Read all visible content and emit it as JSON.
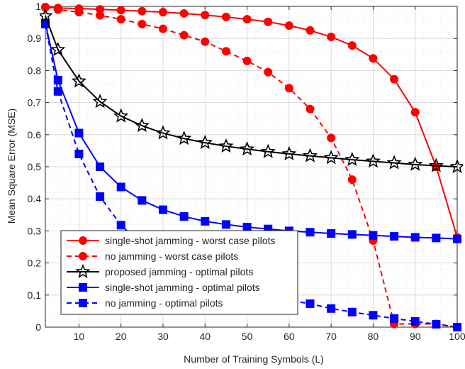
{
  "chart_data": {
    "type": "line",
    "title": "",
    "xlabel": "Number of Training Symbols (L)",
    "ylabel": "Mean Square Error (MSE)",
    "xlim": [
      2,
      100
    ],
    "ylim": [
      0,
      1
    ],
    "xticks": [
      10,
      20,
      30,
      40,
      50,
      60,
      70,
      80,
      90,
      100
    ],
    "yticks": [
      0,
      0.1,
      0.2,
      0.3,
      0.4,
      0.5,
      0.6,
      0.7,
      0.8,
      0.9,
      1
    ],
    "ytick_labels": [
      "0",
      "0.1",
      "0.2",
      "0.3",
      "0.4",
      "0.5",
      "0.6",
      "0.7",
      "0.8",
      "0.9",
      "1"
    ],
    "grid": true,
    "minor_grid": true,
    "legend_position": "bottom-left",
    "series": [
      {
        "name": "single-shot jamming - worst case pilots",
        "color": "#ff0000",
        "style": "solid",
        "marker": "circle",
        "x": [
          2,
          5,
          10,
          15,
          20,
          25,
          30,
          35,
          40,
          45,
          50,
          55,
          60,
          65,
          70,
          75,
          80,
          85,
          90,
          95,
          100
        ],
        "y": [
          0.998,
          0.995,
          0.993,
          0.991,
          0.988,
          0.985,
          0.982,
          0.978,
          0.973,
          0.967,
          0.96,
          0.952,
          0.94,
          0.925,
          0.905,
          0.878,
          0.838,
          0.773,
          0.67,
          0.5,
          0.28
        ]
      },
      {
        "name": "no jamming - worst case pilots",
        "color": "#ff0000",
        "style": "dashed",
        "marker": "circle",
        "x": [
          2,
          5,
          10,
          15,
          20,
          25,
          30,
          35,
          40,
          45,
          50,
          55,
          60,
          65,
          70,
          75,
          80,
          85,
          90,
          95,
          100
        ],
        "y": [
          0.997,
          0.99,
          0.982,
          0.972,
          0.96,
          0.945,
          0.93,
          0.91,
          0.89,
          0.86,
          0.83,
          0.795,
          0.745,
          0.68,
          0.59,
          0.46,
          0.27,
          0.01,
          0.01,
          0.01,
          0.0
        ],
        "note_x": [
          0,
          0,
          0,
          0,
          0,
          0,
          0,
          0,
          0,
          0,
          0,
          0,
          0,
          0,
          0,
          0,
          0,
          0,
          0,
          0,
          0
        ]
      },
      {
        "name": "proposed jamming - optimal pilots",
        "color": "#000000",
        "style": "solid",
        "marker": "star",
        "x": [
          2,
          5,
          10,
          15,
          20,
          25,
          30,
          35,
          40,
          45,
          50,
          55,
          60,
          65,
          70,
          75,
          80,
          85,
          90,
          95,
          100
        ],
        "y": [
          0.97,
          0.865,
          0.767,
          0.703,
          0.658,
          0.628,
          0.605,
          0.588,
          0.575,
          0.564,
          0.555,
          0.547,
          0.54,
          0.534,
          0.528,
          0.522,
          0.517,
          0.512,
          0.507,
          0.503,
          0.5
        ]
      },
      {
        "name": "single-shot jamming - optimal pilots",
        "color": "#0000ff",
        "style": "solid",
        "marker": "square",
        "x": [
          2,
          5,
          10,
          15,
          20,
          25,
          30,
          35,
          40,
          45,
          50,
          55,
          60,
          65,
          70,
          75,
          80,
          85,
          90,
          95,
          100
        ],
        "y": [
          0.948,
          0.77,
          0.605,
          0.5,
          0.437,
          0.395,
          0.366,
          0.345,
          0.33,
          0.32,
          0.312,
          0.306,
          0.3,
          0.296,
          0.292,
          0.289,
          0.286,
          0.283,
          0.28,
          0.278,
          0.275
        ]
      },
      {
        "name": "no jamming - optimal pilots",
        "color": "#0000ff",
        "style": "dashed",
        "marker": "square",
        "x": [
          2,
          5,
          10,
          15,
          20,
          25,
          30,
          35,
          40,
          45,
          50,
          55,
          60,
          65,
          70,
          75,
          80,
          85,
          90,
          95,
          100
        ],
        "y": [
          0.945,
          0.735,
          0.54,
          0.407,
          0.318,
          0.255,
          0.207,
          0.172,
          0.145,
          0.125,
          0.108,
          0.095,
          0.083,
          0.073,
          0.058,
          0.047,
          0.037,
          0.027,
          0.018,
          0.009,
          0.0
        ]
      }
    ]
  }
}
